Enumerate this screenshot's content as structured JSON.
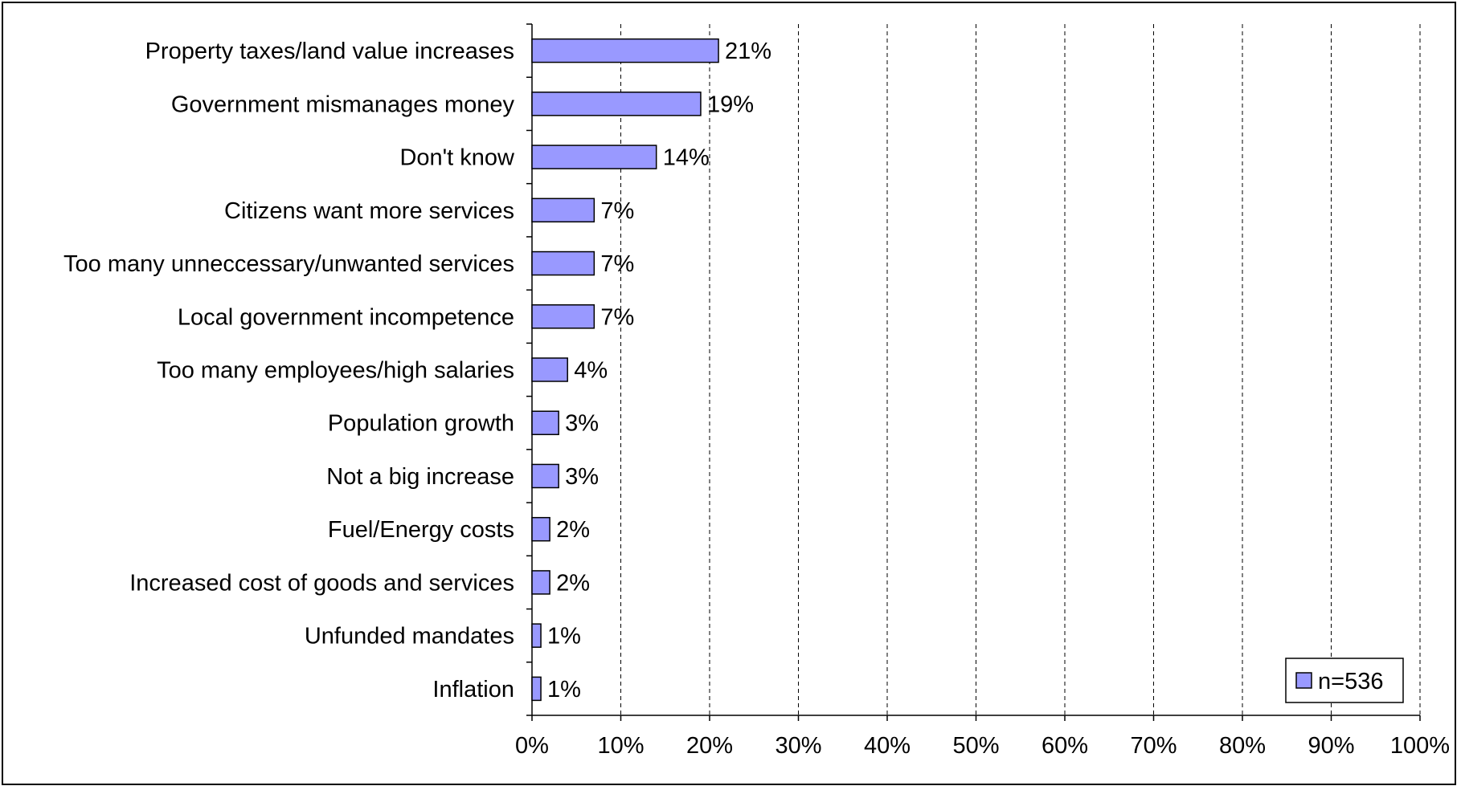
{
  "chart_data": {
    "type": "bar",
    "orientation": "horizontal",
    "title": "",
    "xlabel": "",
    "ylabel": "",
    "categories": [
      "Property taxes/land value increases",
      "Government mismanages money",
      "Don't know",
      "Citizens want more services",
      "Too many unneccessary/unwanted services",
      "Local government incompetence",
      "Too many employees/high salaries",
      "Population growth",
      "Not a big increase",
      "Fuel/Energy costs",
      "Increased cost of goods and services",
      "Unfunded mandates",
      "Inflation"
    ],
    "series": [
      {
        "name": "n=536",
        "values": [
          21,
          19,
          14,
          7,
          7,
          7,
          4,
          3,
          3,
          2,
          2,
          1,
          1
        ],
        "value_labels": [
          "21%",
          "19%",
          "14%",
          "7%",
          "7%",
          "7%",
          "4%",
          "3%",
          "3%",
          "2%",
          "2%",
          "1%",
          "1%"
        ]
      }
    ],
    "xlim": [
      0,
      100
    ],
    "xticks": [
      0,
      10,
      20,
      30,
      40,
      50,
      60,
      70,
      80,
      90,
      100
    ],
    "xtick_labels": [
      "0%",
      "10%",
      "20%",
      "30%",
      "40%",
      "50%",
      "60%",
      "70%",
      "80%",
      "90%",
      "100%"
    ],
    "grid": "vertical dashed",
    "legend_position": "bottom-right",
    "colors": {
      "bar_fill": "#9999FF",
      "bar_stroke": "#000000",
      "grid": "#000000",
      "background": "#FFFFFF"
    }
  }
}
